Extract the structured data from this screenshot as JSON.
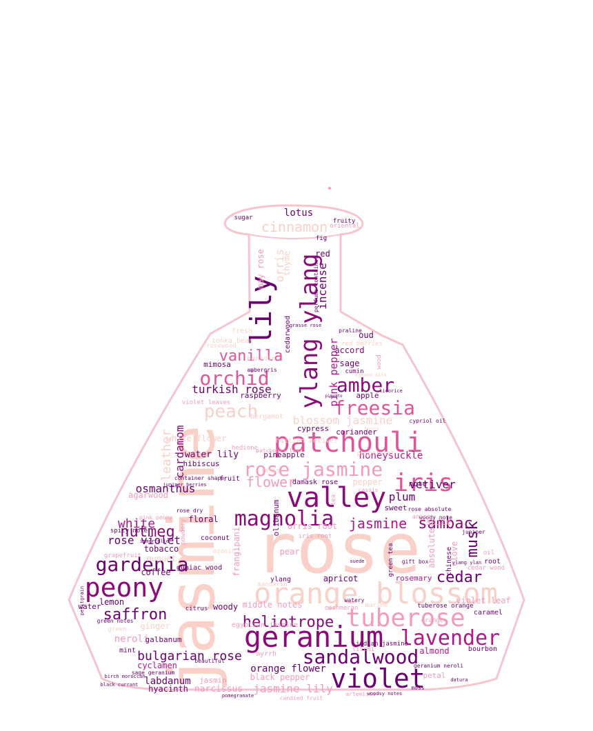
{
  "palette": {
    "outline": "#f7c3cc",
    "dark_purple": "#6a006f",
    "magenta": "#b0178a",
    "pink": "#e0559a",
    "light_pink": "#f39bbd",
    "peach": "#f9d1c8"
  },
  "words": [
    {
      "text": "rose",
      "color": "#f9d1c8"
    },
    {
      "text": "jasmine",
      "color": "#f9d1c8"
    },
    {
      "text": "orange blossom",
      "color": "#f9d1c8"
    },
    {
      "text": "patchouli",
      "color": "#e0559a"
    },
    {
      "text": "ylang ylang",
      "color": "#8a0a7a"
    },
    {
      "text": "lily",
      "color": "#6a006f"
    },
    {
      "text": "valley",
      "color": "#8a0a7a"
    },
    {
      "text": "geranium",
      "color": "#8a0a7a"
    },
    {
      "text": "violet",
      "color": "#6a006f"
    },
    {
      "text": "tuberose",
      "color": "#f39bbd"
    },
    {
      "text": "peony",
      "color": "#8a0a7a"
    },
    {
      "text": "magnolia",
      "color": "#8a0a7a"
    },
    {
      "text": "iris",
      "color": "#e0559a"
    },
    {
      "text": "lavender",
      "color": "#b0178a"
    },
    {
      "text": "sandalwood",
      "color": "#6a006f"
    },
    {
      "text": "rose jasmine",
      "color": "#f39bbd"
    },
    {
      "text": "freesia",
      "color": "#e0559a"
    },
    {
      "text": "gardenia",
      "color": "#6a006f"
    },
    {
      "text": "amber",
      "color": "#8a0a7a"
    },
    {
      "text": "orchid",
      "color": "#e0559a"
    },
    {
      "text": "peach",
      "color": "#f9d1c8"
    },
    {
      "text": "vanilla",
      "color": "#e0559a"
    },
    {
      "text": "nutmeg",
      "color": "#8a0a7a"
    },
    {
      "text": "saffron",
      "color": "#6a006f"
    },
    {
      "text": "heliotrope",
      "color": "#8a0a7a"
    },
    {
      "text": "jasmine",
      "color": "#b0178a"
    },
    {
      "text": "sambac",
      "color": "#8a0a7a"
    },
    {
      "text": "cinnamon",
      "color": "#f9d1c8"
    },
    {
      "text": "white",
      "color": "#b0178a"
    },
    {
      "text": "cedar",
      "color": "#6a006f"
    },
    {
      "text": "musk",
      "color": "#6a006f"
    },
    {
      "text": "bulgarian rose",
      "color": "#6a006f"
    },
    {
      "text": "flower",
      "color": "#f39bbd"
    },
    {
      "text": "turkish rose",
      "color": "#6a006f"
    },
    {
      "text": "osmanthus",
      "color": "#6a006f"
    },
    {
      "text": "rose violet",
      "color": "#6a006f"
    },
    {
      "text": "cardamom",
      "color": "#8a0a7a"
    },
    {
      "text": "leather",
      "color": "#f9d1c8"
    },
    {
      "text": "incense",
      "color": "#6a006f"
    },
    {
      "text": "orris",
      "color": "#f9d1c8"
    },
    {
      "text": "lotus",
      "color": "#6a006f"
    },
    {
      "text": "plum",
      "color": "#6a006f"
    },
    {
      "text": "vetiver",
      "color": "#6a006f"
    },
    {
      "text": "honeysuckle",
      "color": "#b0178a"
    },
    {
      "text": "blossom jasmine",
      "color": "#f9d1c8"
    },
    {
      "text": "pink pepper",
      "color": "#b0178a"
    },
    {
      "text": "water lily",
      "color": "#6a006f"
    },
    {
      "text": "labdanum",
      "color": "#6a006f"
    },
    {
      "text": "jasmine lily",
      "color": "#f39bbd"
    },
    {
      "text": "orange flower",
      "color": "#6a006f"
    },
    {
      "text": "narcissus",
      "color": "#f39bbd"
    },
    {
      "text": "hyacinth",
      "color": "#6a006f"
    },
    {
      "text": "cyclamen",
      "color": "#b0178a"
    },
    {
      "text": "mimosa",
      "color": "#6a006f"
    },
    {
      "text": "raspberry",
      "color": "#6a006f"
    },
    {
      "text": "coffee",
      "color": "#6a006f"
    },
    {
      "text": "tobacco",
      "color": "#6a006f"
    },
    {
      "text": "lemon",
      "color": "#6a006f"
    },
    {
      "text": "floral",
      "color": "#6a006f"
    },
    {
      "text": "coconut",
      "color": "#6a006f"
    },
    {
      "text": "pear",
      "color": "#f39bbd"
    },
    {
      "text": "apricot",
      "color": "#6a006f"
    },
    {
      "text": "woody",
      "color": "#6a006f"
    },
    {
      "text": "oud",
      "color": "#6a006f"
    },
    {
      "text": "accord",
      "color": "#8a0a7a"
    },
    {
      "text": "sage",
      "color": "#6a006f"
    },
    {
      "text": "apple",
      "color": "#6a006f"
    },
    {
      "text": "cypress",
      "color": "#6a006f"
    },
    {
      "text": "coriander",
      "color": "#6a006f"
    },
    {
      "text": "clove",
      "color": "#f39bbd"
    },
    {
      "text": "spice",
      "color": "#f39bbd"
    },
    {
      "text": "rosemary",
      "color": "#b0178a"
    },
    {
      "text": "almond",
      "color": "#b0178a"
    },
    {
      "text": "neroli",
      "color": "#f39bbd"
    },
    {
      "text": "mint",
      "color": "#6a006f"
    },
    {
      "text": "red",
      "color": "#6a006f"
    },
    {
      "text": "thyme",
      "color": "#f9d1c8"
    },
    {
      "text": "fig",
      "color": "#6a006f"
    },
    {
      "text": "fruity",
      "color": "#6a006f"
    },
    {
      "text": "sugar",
      "color": "#6a006f"
    },
    {
      "text": "cumin",
      "color": "#6a006f"
    },
    {
      "text": "olibanum",
      "color": "#6a006f"
    },
    {
      "text": "hibiscus",
      "color": "#6a006f"
    },
    {
      "text": "pineapple",
      "color": "#6a006f"
    },
    {
      "text": "black pepper",
      "color": "#f39bbd"
    },
    {
      "text": "jasmin",
      "color": "#f39bbd"
    },
    {
      "text": "galbanum",
      "color": "#6a006f"
    },
    {
      "text": "caramel",
      "color": "#6a006f"
    },
    {
      "text": "water",
      "color": "#6a006f"
    },
    {
      "text": "agarwood",
      "color": "#f39bbd"
    },
    {
      "text": "fruit",
      "color": "#6a006f"
    },
    {
      "text": "note",
      "color": "#6a006f"
    },
    {
      "text": "sweet",
      "color": "#6a006f"
    },
    {
      "text": "absolute",
      "color": "#f39bbd"
    },
    {
      "text": "guaiac wood",
      "color": "#6a006f"
    },
    {
      "text": "ginger",
      "color": "#f9d1c8"
    },
    {
      "text": "muguet",
      "color": "#f9d1c8"
    },
    {
      "text": "bergamot",
      "color": "#f9d1c8"
    },
    {
      "text": "container shape",
      "color": "#6a006f"
    },
    {
      "text": "cedarwood",
      "color": "#6a006f"
    },
    {
      "text": "bourbon",
      "color": "#6a006f"
    },
    {
      "text": "damask rose",
      "color": "#6a006f"
    },
    {
      "text": "middle notes",
      "color": "#f39bbd"
    },
    {
      "text": "ylang",
      "color": "#6a006f"
    },
    {
      "text": "may rose",
      "color": "#f39bbd"
    },
    {
      "text": "perfume container",
      "color": "#6a006f"
    },
    {
      "text": "white flower",
      "color": "#f9d1c8"
    },
    {
      "text": "green notes",
      "color": "#6a006f"
    },
    {
      "text": "sage geranium",
      "color": "#6a006f"
    },
    {
      "text": "beautiful",
      "color": "#6a006f"
    },
    {
      "text": "tuberose orange",
      "color": "#6a006f"
    },
    {
      "text": "geranium neroli",
      "color": "#6a006f"
    },
    {
      "text": "indian jasmine",
      "color": "#6a006f"
    },
    {
      "text": "rose absolute",
      "color": "#6a006f"
    },
    {
      "text": "woody note",
      "color": "#6a006f"
    },
    {
      "text": "rose dry",
      "color": "#6a006f"
    },
    {
      "text": "juniper berries",
      "color": "#6a006f"
    },
    {
      "text": "moss",
      "color": "#6a006f"
    },
    {
      "text": "petal",
      "color": "#f39bbd"
    },
    {
      "text": "violet leaf",
      "color": "#f39bbd"
    },
    {
      "text": "chinese",
      "color": "#6a006f"
    },
    {
      "text": "root",
      "color": "#6a006f"
    },
    {
      "text": "oil",
      "color": "#f39bbd"
    },
    {
      "text": "cedar wood",
      "color": "#f39bbd"
    },
    {
      "text": "orris root",
      "color": "#f39bbd"
    },
    {
      "text": "frangipani",
      "color": "#f39bbd"
    },
    {
      "text": "spicy note",
      "color": "#6a006f"
    },
    {
      "text": "immortelle",
      "color": "#6a006f"
    },
    {
      "text": "grasse rose",
      "color": "#6a006f"
    },
    {
      "text": "praline",
      "color": "#6a006f"
    },
    {
      "text": "tonka bean",
      "color": "#f9d1c8"
    },
    {
      "text": "rosewood",
      "color": "#f9d1c8"
    },
    {
      "text": "ambergris",
      "color": "#6a006f"
    },
    {
      "text": "fresh",
      "color": "#f9d1c8"
    },
    {
      "text": "benzoin",
      "color": "#f9d1c8"
    },
    {
      "text": "mandarin",
      "color": "#f9d1c8"
    },
    {
      "text": "wood",
      "color": "#f39bbd"
    },
    {
      "text": "green",
      "color": "#f9d1c8"
    },
    {
      "text": "watery",
      "color": "#6a006f"
    },
    {
      "text": "cashmeran",
      "color": "#f39bbd"
    },
    {
      "text": "egyptian jasmine",
      "color": "#f39bbd"
    },
    {
      "text": "litchi",
      "color": "#f39bbd"
    },
    {
      "text": "gift box",
      "color": "#6a006f"
    },
    {
      "text": "suede",
      "color": "#6a006f"
    },
    {
      "text": "pimento",
      "color": "#6a006f"
    },
    {
      "text": "licorice",
      "color": "#6a006f"
    },
    {
      "text": "cypriol oil",
      "color": "#6a006f"
    },
    {
      "text": "anise",
      "color": "#f39bbd"
    },
    {
      "text": "haitian vetiver",
      "color": "#f9d1c8"
    },
    {
      "text": "resin",
      "color": "#f9d1c8"
    },
    {
      "text": "marine",
      "color": "#f9d1c8"
    },
    {
      "text": "pepper",
      "color": "#f9d1c8"
    },
    {
      "text": "artemisia",
      "color": "#f39bbd"
    },
    {
      "text": "patchouli leaf",
      "color": "#f39bbd"
    },
    {
      "text": "orange",
      "color": "#f39bbd"
    },
    {
      "text": "oriental",
      "color": "#f39bbd"
    },
    {
      "text": "grapefruit",
      "color": "#f39bbd"
    },
    {
      "text": "citrus",
      "color": "#6a006f"
    },
    {
      "text": "powdery",
      "color": "#f39bbd"
    },
    {
      "text": "juniper",
      "color": "#6a006f"
    },
    {
      "text": "petitgrain",
      "color": "#6a006f"
    },
    {
      "text": "pink peony",
      "color": "#f39bbd"
    },
    {
      "text": "hedione",
      "color": "#f39bbd"
    },
    {
      "text": "cassis",
      "color": "#f39bbd"
    },
    {
      "text": "red berries",
      "color": "#f9d1c8"
    },
    {
      "text": "honey",
      "color": "#f9d1c8"
    },
    {
      "text": "almond milk",
      "color": "#f9d1c8"
    },
    {
      "text": "tea",
      "color": "#f39bbd"
    },
    {
      "text": "green tea",
      "color": "#6a006f"
    },
    {
      "text": "ozonic",
      "color": "#f9d1c8"
    },
    {
      "text": "violet leaves",
      "color": "#f39bbd"
    },
    {
      "text": "iris root",
      "color": "#f39bbd"
    },
    {
      "text": "birch moroccan",
      "color": "#6a006f"
    },
    {
      "text": "myrrh",
      "color": "#f39bbd"
    },
    {
      "text": "peppermint",
      "color": "#f9d1c8"
    },
    {
      "text": "datura",
      "color": "#6a006f"
    },
    {
      "text": "ylang ylan",
      "color": "#6a006f"
    },
    {
      "text": "woodsy notes",
      "color": "#6a006f"
    },
    {
      "text": "pomegranate",
      "color": "#6a006f"
    },
    {
      "text": "black currant",
      "color": "#6a006f"
    },
    {
      "text": "candied fruit",
      "color": "#f39bbd"
    }
  ]
}
